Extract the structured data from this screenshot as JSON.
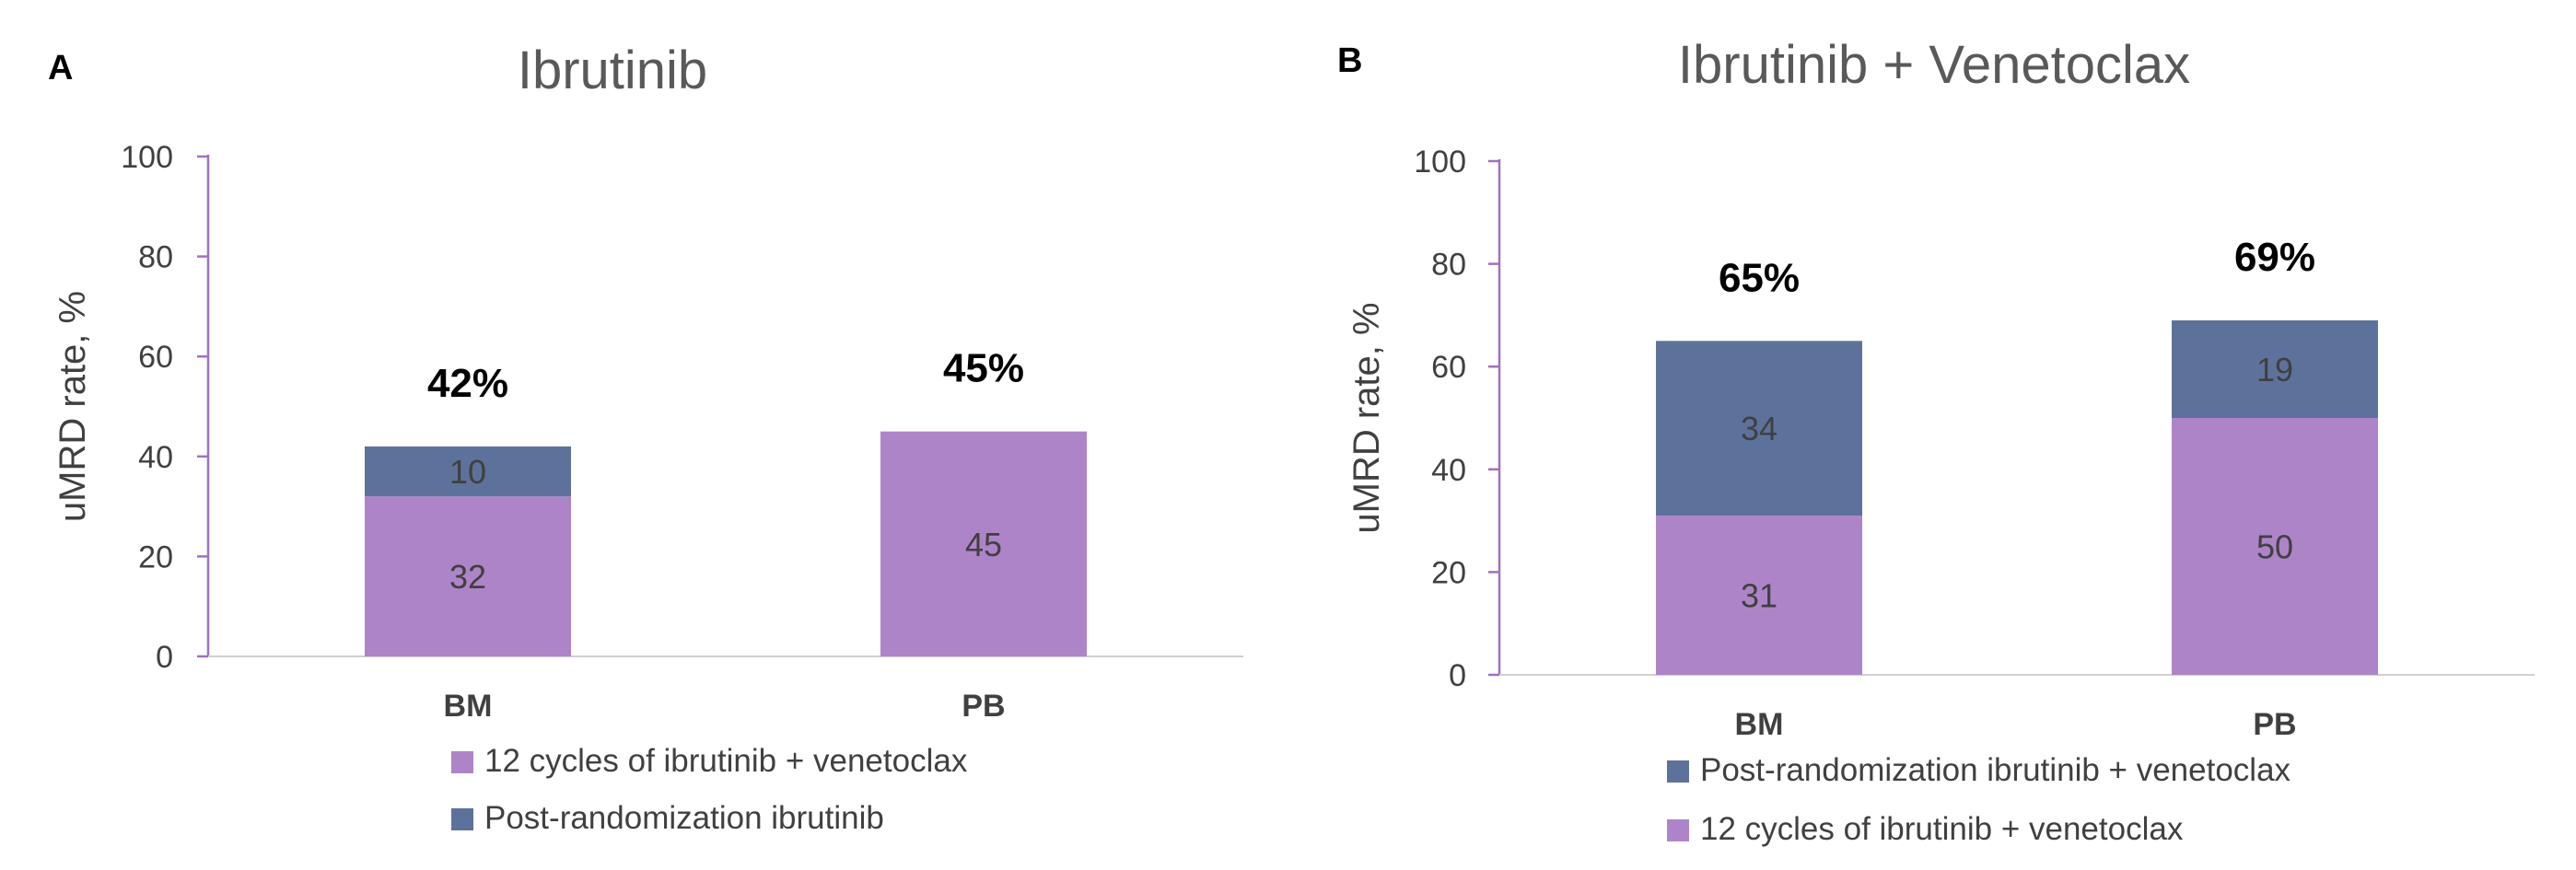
{
  "chart_data": [
    {
      "type": "bar",
      "stacked": true,
      "panel": "A",
      "title": "Ibrutinib",
      "ylabel": "uMRD rate, %",
      "xlabel": "",
      "ylim": [
        0,
        100
      ],
      "yticks": [
        "0",
        "20",
        "40",
        "60",
        "80",
        "100"
      ],
      "categories": [
        "BM",
        "PB"
      ],
      "series": [
        {
          "name": "12 cycles of ibrutinib + venetoclax",
          "values": [
            32,
            45
          ],
          "labels": [
            "32",
            "45"
          ],
          "color": "#ae84c8"
        },
        {
          "name": "Post-randomization ibrutinib",
          "values": [
            10,
            0
          ],
          "labels": [
            "10",
            ""
          ],
          "color": "#5d729b"
        }
      ],
      "totals": [
        "42%",
        "45%"
      ],
      "legend": {
        "position": "bottom",
        "entries": [
          {
            "name": "12 cycles of ibrutinib + venetoclax",
            "color": "#ae84c8"
          },
          {
            "name": "Post-randomization ibrutinib",
            "color": "#5d729b"
          }
        ]
      },
      "grid": false
    },
    {
      "type": "bar",
      "stacked": true,
      "panel": "B",
      "title": "Ibrutinib + Venetoclax",
      "ylabel": "uMRD rate, %",
      "xlabel": "",
      "ylim": [
        0,
        100
      ],
      "yticks": [
        "0",
        "20",
        "40",
        "60",
        "80",
        "100"
      ],
      "categories": [
        "BM",
        "PB"
      ],
      "series": [
        {
          "name": "12 cycles of ibrutinib + venetoclax",
          "values": [
            31,
            50
          ],
          "labels": [
            "31",
            "50"
          ],
          "color": "#ae84c8"
        },
        {
          "name": "Post-randomization ibrutinib + venetoclax",
          "values": [
            34,
            19
          ],
          "labels": [
            "34",
            "19"
          ],
          "color": "#5d729b"
        }
      ],
      "totals": [
        "65%",
        "69%"
      ],
      "legend": {
        "position": "bottom",
        "entries": [
          {
            "name": "Post-randomization ibrutinib + venetoclax",
            "color": "#5d729b"
          },
          {
            "name": "12 cycles of ibrutinib + venetoclax",
            "color": "#ae84c8"
          }
        ]
      },
      "grid": false
    }
  ]
}
